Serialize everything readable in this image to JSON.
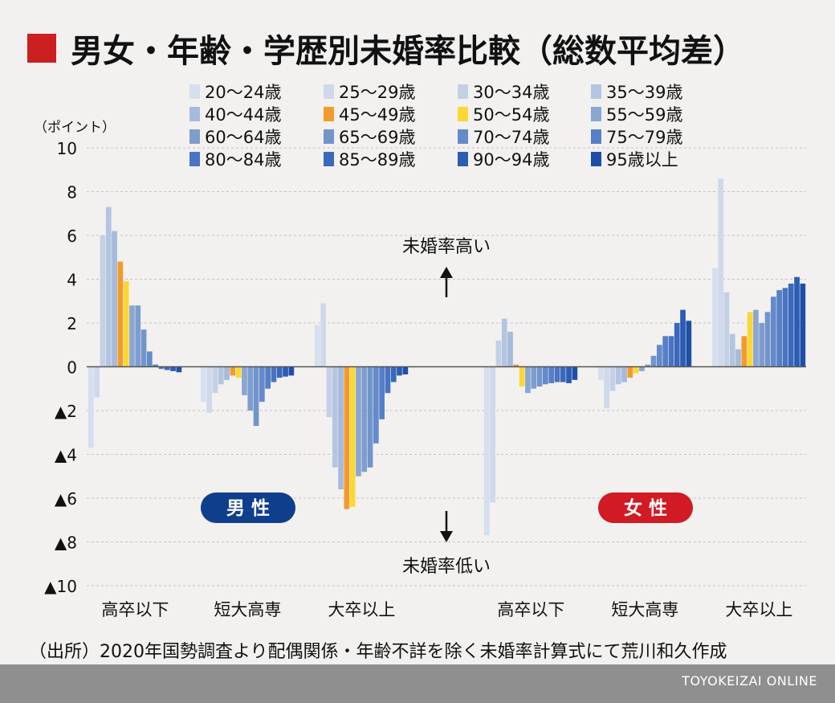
{
  "title": "男女・年齢・学歴別未婚率比較（総数平均差）",
  "colors": {
    "title_square": "#cc1f1f",
    "male_badge": "#0f3f8c",
    "female_badge": "#d11a23"
  },
  "source": "（出所）2020年国勢調査より配偶関係・年齢不詳を除く未婚率計算式にて荒川和久作成",
  "credit": "TOYOKEIZAI ONLINE",
  "chart_data": {
    "type": "bar",
    "y_unit_label": "（ポイント）",
    "ylim": [
      -10,
      10
    ],
    "y_ticks": [
      {
        "value": 10,
        "label": "10"
      },
      {
        "value": 8,
        "label": "8"
      },
      {
        "value": 6,
        "label": "6"
      },
      {
        "value": 4,
        "label": "4"
      },
      {
        "value": 2,
        "label": "2"
      },
      {
        "value": 0,
        "label": "0"
      },
      {
        "value": -2,
        "label": "▲2"
      },
      {
        "value": -4,
        "label": "▲4"
      },
      {
        "value": -6,
        "label": "▲6"
      },
      {
        "value": -8,
        "label": "▲8"
      },
      {
        "value": -10,
        "label": "▲10"
      }
    ],
    "annotation_up": "未婚率高い",
    "annotation_down": "未婚率低い",
    "male_label": "男 性",
    "female_label": "女 性",
    "series_names": [
      "20〜24歳",
      "25〜29歳",
      "30〜34歳",
      "35〜39歳",
      "40〜44歳",
      "45〜49歳",
      "50〜54歳",
      "55〜59歳",
      "60〜64歳",
      "65〜69歳",
      "70〜74歳",
      "75〜79歳",
      "80〜84歳",
      "85〜89歳",
      "90〜94歳",
      "95歳以上"
    ],
    "series_colors": [
      "#d6dfee",
      "#cfd9eb",
      "#c3d0e6",
      "#b4c5e1",
      "#a6badb",
      "#f39a2e",
      "#fad834",
      "#8aa6d2",
      "#7e9dcf",
      "#7194cb",
      "#648acb",
      "#567fc7",
      "#4874c1",
      "#3a68bb",
      "#2c5cb3",
      "#1d4fa8"
    ],
    "groups": [
      {
        "gender": "男性",
        "label": "高卒以下",
        "values": [
          -3.7,
          -1.4,
          6.0,
          7.3,
          6.2,
          4.8,
          3.9,
          2.8,
          2.8,
          1.7,
          0.7,
          0.1,
          -0.1,
          -0.15,
          -0.2,
          -0.25
        ]
      },
      {
        "gender": "男性",
        "label": "短大高専",
        "values": [
          -1.6,
          -2.1,
          -1.2,
          -0.8,
          -0.6,
          -0.4,
          -0.5,
          -1.3,
          -2.0,
          -2.7,
          -1.6,
          -1.0,
          -0.7,
          -0.5,
          -0.45,
          -0.4
        ]
      },
      {
        "gender": "男性",
        "label": "大卒以上",
        "values": [
          1.9,
          2.9,
          -2.3,
          -4.6,
          -5.6,
          -6.5,
          -6.4,
          -5.0,
          -4.8,
          -4.6,
          -3.5,
          -2.4,
          -1.2,
          -0.7,
          -0.4,
          -0.35
        ]
      },
      {
        "gender": "女性",
        "label": "高卒以下",
        "values": [
          -7.7,
          -6.2,
          1.2,
          2.2,
          1.6,
          0.1,
          -0.9,
          -1.2,
          -1.0,
          -0.9,
          -0.8,
          -0.75,
          -0.7,
          -0.7,
          -0.75,
          -0.6
        ]
      },
      {
        "gender": "女性",
        "label": "短大高専",
        "values": [
          -0.6,
          -1.9,
          -1.1,
          -0.8,
          -0.7,
          -0.5,
          -0.3,
          -0.2,
          0.1,
          0.5,
          1.0,
          1.4,
          1.4,
          2.0,
          2.6,
          2.1
        ]
      },
      {
        "gender": "女性",
        "label": "大卒以上",
        "values": [
          4.5,
          8.6,
          3.4,
          1.5,
          0.8,
          1.4,
          2.5,
          2.6,
          2.0,
          2.5,
          3.2,
          3.5,
          3.6,
          3.8,
          4.1,
          3.8
        ]
      }
    ]
  }
}
